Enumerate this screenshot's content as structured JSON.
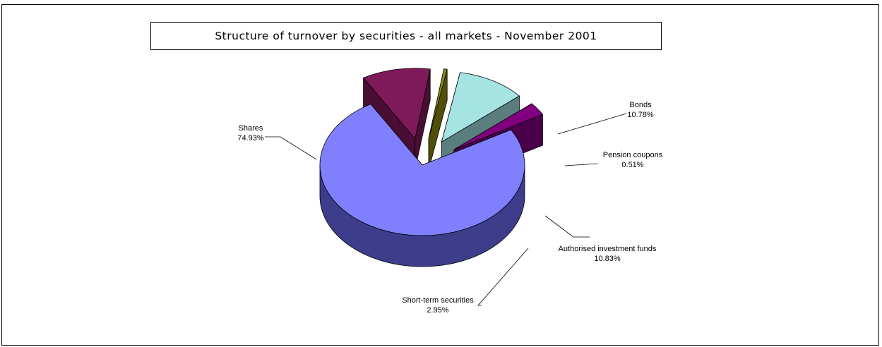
{
  "chart_data": {
    "type": "pie",
    "title": "Structure of turnover by securities - all markets - November 2001",
    "slices": [
      {
        "name": "Shares",
        "value": 74.93,
        "label": "74.93%",
        "color": "#8080ff",
        "side": "#3d3d8c"
      },
      {
        "name": "Bonds",
        "value": 10.78,
        "label": "10.78%",
        "color": "#7f1a5a",
        "side": "#4a0d34"
      },
      {
        "name": "Pension coupons",
        "value": 0.51,
        "label": "0.51%",
        "color": "#8c8c14",
        "side": "#4f4f08"
      },
      {
        "name": "Authorised investment funds",
        "value": 10.83,
        "label": "10.83%",
        "color": "#a6e4e4",
        "side": "#5a7e7e"
      },
      {
        "name": "Short-term securities",
        "value": 2.95,
        "label": "2.95%",
        "color": "#800080",
        "side": "#4a004a"
      }
    ],
    "style": "3d-exploded"
  }
}
